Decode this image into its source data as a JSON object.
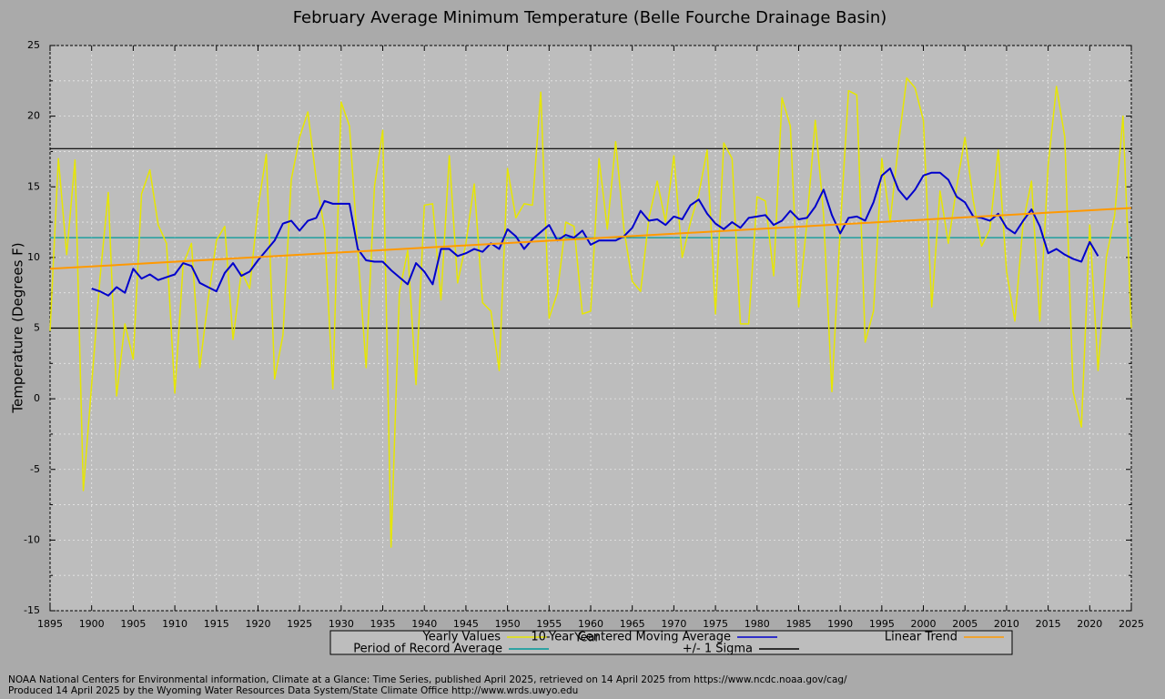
{
  "chart_data": {
    "type": "line",
    "title": "February Average Minimum Temperature (Belle Fourche Drainage Basin)",
    "x_label": "Year",
    "y_label": "Temperature (Degrees F)",
    "xlim": [
      1895,
      2025
    ],
    "xticks": [
      1895,
      1900,
      1905,
      1910,
      1915,
      1920,
      1925,
      1930,
      1935,
      1940,
      1945,
      1950,
      1955,
      1960,
      1965,
      1970,
      1975,
      1980,
      1985,
      1990,
      1995,
      2000,
      2005,
      2010,
      2015,
      2020,
      2025
    ],
    "ylim": [
      -15,
      25
    ],
    "yticks": [
      -15,
      -10,
      -5,
      0,
      5,
      10,
      15,
      20,
      25
    ],
    "minor_yticks": [
      -12.5,
      -7.5,
      -2.5,
      2.5,
      7.5,
      12.5,
      17.5,
      22.5
    ],
    "grid": true,
    "series": [
      {
        "name": "Yearly Values",
        "color": "#e6e600",
        "x": [
          1895,
          1896,
          1897,
          1898,
          1899,
          1900,
          1901,
          1902,
          1903,
          1904,
          1905,
          1906,
          1907,
          1908,
          1909,
          1910,
          1911,
          1912,
          1913,
          1914,
          1915,
          1916,
          1917,
          1918,
          1919,
          1920,
          1921,
          1922,
          1923,
          1924,
          1925,
          1926,
          1927,
          1928,
          1929,
          1930,
          1931,
          1932,
          1933,
          1934,
          1935,
          1936,
          1937,
          1938,
          1939,
          1940,
          1941,
          1942,
          1943,
          1944,
          1945,
          1946,
          1947,
          1948,
          1949,
          1950,
          1951,
          1952,
          1953,
          1954,
          1955,
          1956,
          1957,
          1958,
          1959,
          1960,
          1961,
          1962,
          1963,
          1964,
          1965,
          1966,
          1967,
          1968,
          1969,
          1970,
          1971,
          1972,
          1973,
          1974,
          1975,
          1976,
          1977,
          1978,
          1979,
          1980,
          1981,
          1982,
          1983,
          1984,
          1985,
          1986,
          1987,
          1988,
          1989,
          1990,
          1991,
          1992,
          1993,
          1994,
          1995,
          1996,
          1997,
          1998,
          1999,
          2000,
          2001,
          2002,
          2003,
          2004,
          2005,
          2006,
          2007,
          2008,
          2009,
          2010,
          2011,
          2012,
          2013,
          2014,
          2015,
          2016,
          2017,
          2018,
          2019,
          2020,
          2021,
          2022,
          2023,
          2024,
          2025
        ],
        "values": [
          4.8,
          17.0,
          10.2,
          16.9,
          -6.5,
          1.0,
          8.5,
          14.6,
          0.2,
          5.3,
          2.8,
          14.5,
          16.2,
          12.3,
          11.0,
          0.4,
          9.5,
          11.0,
          2.2,
          7.0,
          11.2,
          12.2,
          4.2,
          9.0,
          7.8,
          13.5,
          17.3,
          1.4,
          4.5,
          15.5,
          18.5,
          20.3,
          15.5,
          12.0,
          0.7,
          21.0,
          19.3,
          10.5,
          2.2,
          15.0,
          19.0,
          -10.5,
          7.5,
          10.5,
          1.0,
          13.7,
          13.8,
          7.0,
          17.2,
          8.2,
          11.0,
          15.2,
          6.8,
          6.2,
          2.0,
          16.3,
          12.8,
          13.8,
          13.7,
          21.7,
          5.7,
          7.5,
          12.5,
          12.2,
          6.0,
          6.2,
          17.0,
          12.0,
          18.2,
          12.0,
          8.3,
          7.6,
          12.8,
          15.4,
          12.5,
          17.2,
          10.0,
          12.5,
          14.5,
          17.6,
          6.0,
          18.1,
          17.0,
          5.3,
          5.3,
          14.3,
          14.0,
          8.7,
          21.3,
          19.3,
          6.5,
          12.5,
          19.7,
          13.0,
          0.5,
          12.0,
          21.8,
          21.5,
          4.0,
          6.2,
          17.0,
          12.5,
          18.0,
          22.7,
          22.0,
          19.7,
          6.5,
          14.7,
          11.0,
          15.0,
          18.5,
          14.0,
          10.8,
          12.0,
          17.6,
          9.0,
          5.5,
          12.5,
          15.4,
          5.5,
          16.5,
          22.1,
          18.5,
          0.5,
          -2.0,
          12.3,
          2.0,
          10.0,
          13.0,
          20.0,
          5.0
        ]
      },
      {
        "name": "10-Year Centered Moving Average",
        "color": "#0000cc",
        "x": [
          1900,
          1901,
          1902,
          1903,
          1904,
          1905,
          1906,
          1907,
          1908,
          1909,
          1910,
          1911,
          1912,
          1913,
          1914,
          1915,
          1916,
          1917,
          1918,
          1919,
          1920,
          1921,
          1922,
          1923,
          1924,
          1925,
          1926,
          1927,
          1928,
          1929,
          1930,
          1931,
          1932,
          1933,
          1934,
          1935,
          1936,
          1937,
          1938,
          1939,
          1940,
          1941,
          1942,
          1943,
          1944,
          1945,
          1946,
          1947,
          1948,
          1949,
          1950,
          1951,
          1952,
          1953,
          1954,
          1955,
          1956,
          1957,
          1958,
          1959,
          1960,
          1961,
          1962,
          1963,
          1964,
          1965,
          1966,
          1967,
          1968,
          1969,
          1970,
          1971,
          1972,
          1973,
          1974,
          1975,
          1976,
          1977,
          1978,
          1979,
          1980,
          1981,
          1982,
          1983,
          1984,
          1985,
          1986,
          1987,
          1988,
          1989,
          1990,
          1991,
          1992,
          1993,
          1994,
          1995,
          1996,
          1997,
          1998,
          1999,
          2000,
          2001,
          2002,
          2003,
          2004,
          2005,
          2006,
          2007,
          2008,
          2009,
          2010,
          2011,
          2012,
          2013,
          2014,
          2015,
          2016,
          2017,
          2018,
          2019,
          2020,
          2021
        ],
        "values": [
          7.8,
          7.6,
          7.3,
          7.9,
          7.5,
          9.2,
          8.5,
          8.8,
          8.4,
          8.6,
          8.8,
          9.6,
          9.4,
          8.2,
          7.9,
          7.6,
          8.9,
          9.6,
          8.7,
          9.0,
          9.8,
          10.5,
          11.2,
          12.4,
          12.6,
          11.9,
          12.6,
          12.8,
          14.0,
          13.8,
          13.8,
          13.8,
          10.6,
          9.8,
          9.7,
          9.7,
          9.1,
          8.6,
          8.1,
          9.6,
          9.0,
          8.1,
          10.6,
          10.6,
          10.1,
          10.3,
          10.6,
          10.4,
          11.0,
          10.6,
          12.0,
          11.5,
          10.6,
          11.3,
          11.8,
          12.3,
          11.2,
          11.6,
          11.4,
          11.9,
          10.9,
          11.2,
          11.2,
          11.2,
          11.5,
          12.1,
          13.3,
          12.6,
          12.7,
          12.3,
          12.9,
          12.7,
          13.7,
          14.1,
          13.1,
          12.4,
          12.0,
          12.5,
          12.1,
          12.8,
          12.9,
          13.0,
          12.3,
          12.6,
          13.3,
          12.7,
          12.8,
          13.6,
          14.8,
          13.0,
          11.7,
          12.8,
          12.9,
          12.6,
          13.9,
          15.8,
          16.3,
          14.8,
          14.1,
          14.8,
          15.8,
          16.0,
          16.0,
          15.5,
          14.3,
          13.9,
          12.9,
          12.8,
          12.6,
          13.1,
          12.1,
          11.7,
          12.6,
          13.4,
          12.2,
          10.3,
          10.6,
          10.2,
          9.9,
          9.7,
          11.1,
          10.1
        ]
      },
      {
        "name": "Linear Trend",
        "color": "#ff9900",
        "x": [
          1895,
          2025
        ],
        "values": [
          9.2,
          13.5
        ]
      }
    ],
    "reference_lines": [
      {
        "name": "Period of Record Average",
        "color": "#009999",
        "values": [
          11.4
        ]
      },
      {
        "name": "+/- 1 Sigma",
        "color": "#000000",
        "values": [
          17.7,
          5.0
        ]
      }
    ],
    "notes": [
      "NOAA National Centers for Environmental information, Climate at a Glance: Time Series, published April 2025, retrieved on 14 April 2025 from https://www.ncdc.noaa.gov/cag/",
      "Produced 14 April 2025 by the Wyoming Water Resources Data System/State Climate Office http://www.wrds.uwyo.edu"
    ]
  }
}
